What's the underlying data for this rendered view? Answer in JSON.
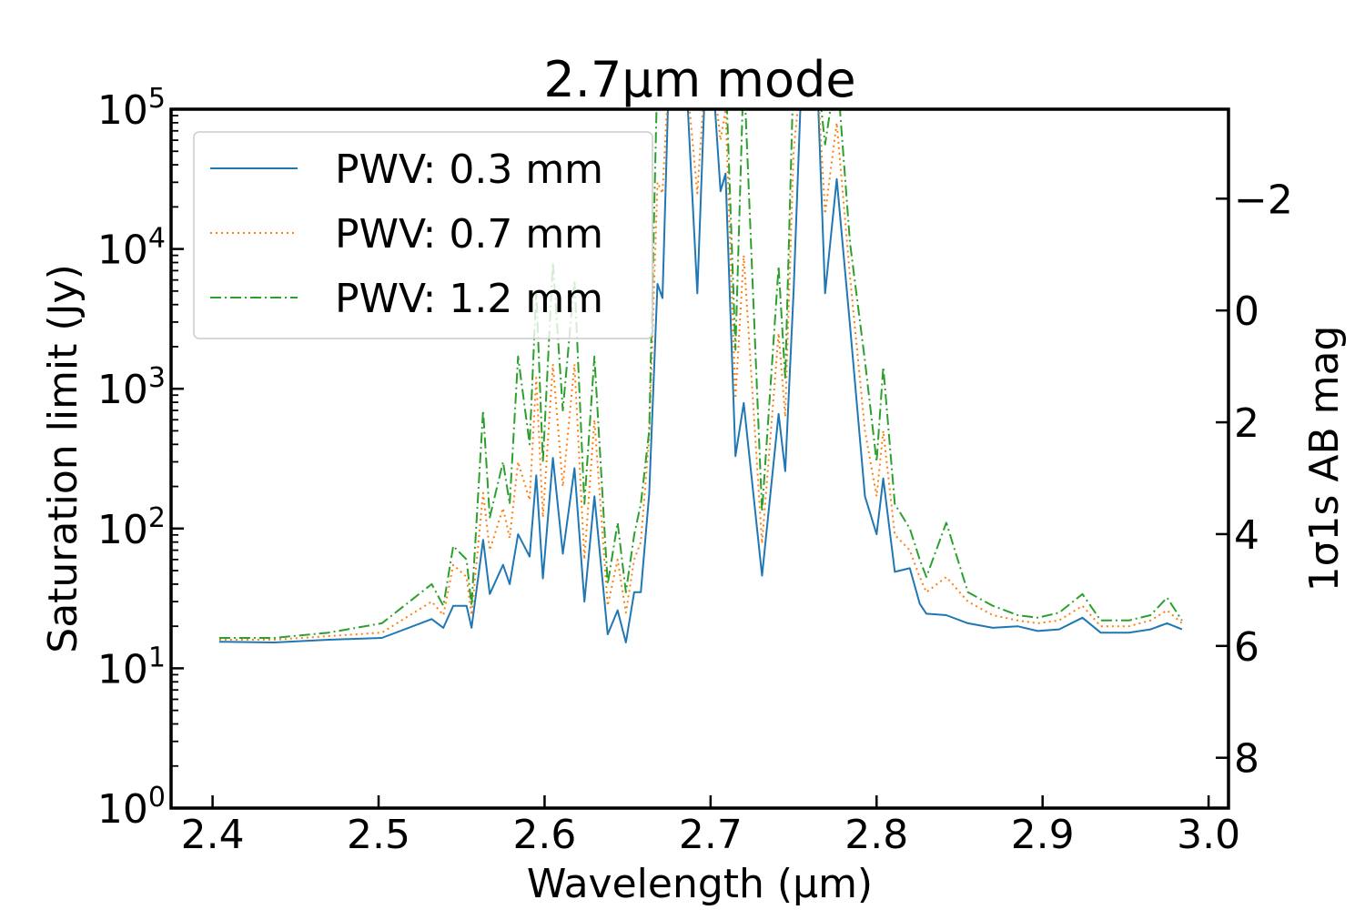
{
  "chart_data": {
    "type": "line",
    "title": "2.7μm mode",
    "xlabel": "Wavelength (μm)",
    "ylabel": "Saturation limit (Jy)",
    "ylabel_right": "1σ1s AB mag",
    "xlim": [
      2.375,
      3.012
    ],
    "ylim": [
      1,
      100000
    ],
    "yscale": "log",
    "right_axis": {
      "transform": "AB magnitude = -2.5*log10(F/3631)",
      "ticks": [
        -2,
        0,
        2,
        4,
        6,
        8
      ],
      "tick_labels": [
        "−2",
        "0",
        "2",
        "4",
        "6",
        "8"
      ]
    },
    "xticks": [
      2.4,
      2.5,
      2.6,
      2.7,
      2.8,
      2.9,
      3.0
    ],
    "xtick_labels": [
      "2.4",
      "2.5",
      "2.6",
      "2.7",
      "2.8",
      "2.9",
      "3.0"
    ],
    "yticks": [
      1,
      10,
      100,
      1000,
      10000,
      100000
    ],
    "ytick_labels": [
      {
        "base": "10",
        "exp": "0"
      },
      {
        "base": "10",
        "exp": "1"
      },
      {
        "base": "10",
        "exp": "2"
      },
      {
        "base": "10",
        "exp": "3"
      },
      {
        "base": "10",
        "exp": "4"
      },
      {
        "base": "10",
        "exp": "5"
      }
    ],
    "grid": false,
    "legend_position": "upper-left",
    "x": [
      2.404,
      2.437,
      2.47,
      2.502,
      2.532,
      2.539,
      2.545,
      2.553,
      2.556,
      2.563,
      2.567,
      2.575,
      2.579,
      2.584,
      2.591,
      2.595,
      2.599,
      2.605,
      2.611,
      2.618,
      2.624,
      2.63,
      2.638,
      2.644,
      2.649,
      2.654,
      2.658,
      2.663,
      2.668,
      2.671,
      2.675,
      2.685,
      2.692,
      2.697,
      2.701,
      2.706,
      2.709,
      2.715,
      2.72,
      2.731,
      2.741,
      2.745,
      2.75,
      2.755,
      2.764,
      2.769,
      2.776,
      2.784,
      2.793,
      2.8,
      2.804,
      2.811,
      2.82,
      2.826,
      2.83,
      2.842,
      2.855,
      2.87,
      2.885,
      2.897,
      2.91,
      2.924,
      2.935,
      2.952,
      2.965,
      2.975,
      2.984
    ],
    "series": [
      {
        "name": "PWV: 0.3 mm",
        "color": "#1f77b4",
        "style": "solid",
        "values": [
          15.5,
          15.3,
          16,
          16.5,
          22.5,
          19.5,
          28,
          28,
          19.5,
          83,
          34,
          55,
          40,
          91,
          63,
          240,
          44,
          320,
          66,
          270,
          30,
          170,
          17.5,
          26,
          15.3,
          35,
          35,
          177,
          5620,
          4450,
          200000,
          200000,
          4820,
          200000,
          200000,
          25900,
          34600,
          330,
          790,
          46,
          660,
          257,
          5000,
          200000,
          200000,
          4820,
          31600,
          2820,
          170,
          91,
          228,
          49,
          52,
          29,
          24.6,
          24,
          21,
          19.5,
          20,
          18.5,
          19,
          23,
          18,
          18,
          19,
          21,
          19
        ]
      },
      {
        "name": "PWV: 0.7 mm",
        "color": "#ff7f0e",
        "style": "dotted",
        "values": [
          16,
          16,
          17,
          18,
          30,
          24,
          55,
          45,
          24,
          180,
          70,
          140,
          85,
          300,
          160,
          1200,
          120,
          1500,
          200,
          1500,
          60,
          600,
          28,
          60,
          25,
          60,
          80,
          450,
          30000,
          25000,
          200000,
          200000,
          25000,
          200000,
          200000,
          60000,
          100000,
          850,
          9000,
          78,
          2500,
          630,
          50000,
          200000,
          200000,
          17800,
          80000,
          6300,
          500,
          170,
          500,
          90,
          70,
          45,
          35,
          45,
          30,
          24,
          22,
          21,
          22,
          28,
          20,
          20,
          22,
          26,
          21
        ]
      },
      {
        "name": "PWV: 1.2 mm",
        "color": "#2ca02c",
        "style": "dashdot",
        "values": [
          16.5,
          16.5,
          18,
          21,
          40,
          28,
          75,
          60,
          28,
          700,
          120,
          300,
          150,
          1700,
          400,
          5000,
          300,
          8000,
          700,
          6000,
          150,
          1700,
          40,
          110,
          35,
          90,
          150,
          500,
          200000,
          200000,
          200000,
          200000,
          200000,
          200000,
          200000,
          200000,
          200000,
          1900,
          200000,
          132,
          7500,
          1180,
          200000,
          200000,
          200000,
          56000,
          200000,
          11000,
          1580,
          300,
          1430,
          150,
          100,
          60,
          45,
          110,
          35,
          28,
          24,
          23,
          25,
          34,
          22,
          22,
          24,
          32,
          22
        ]
      }
    ]
  }
}
